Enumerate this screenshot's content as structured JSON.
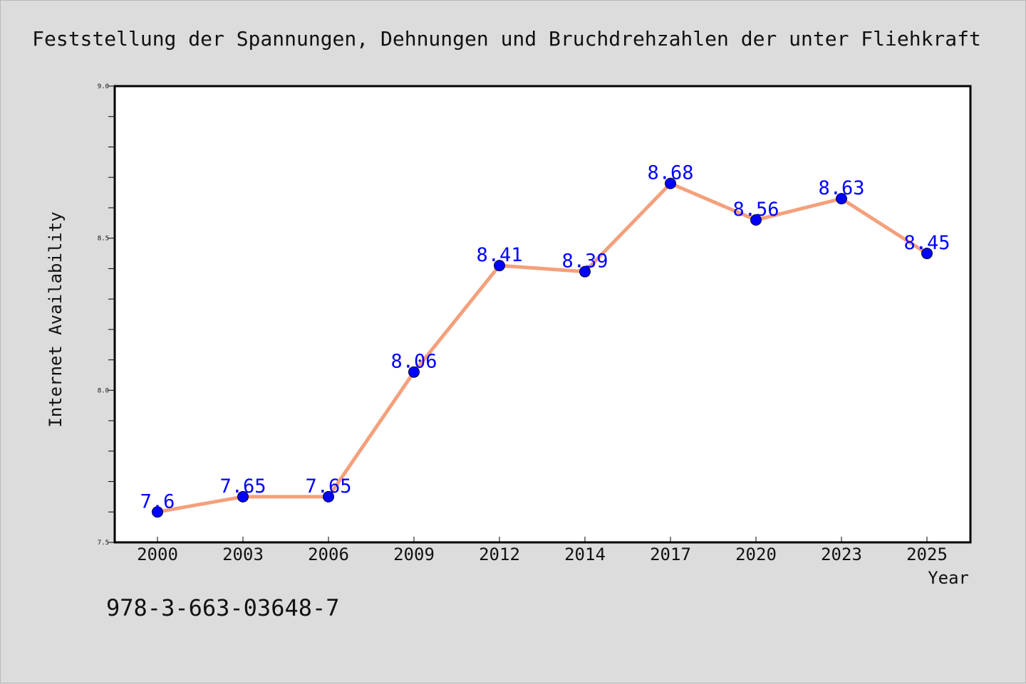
{
  "chart_data": {
    "type": "line",
    "title": "Feststellung der Spannungen, Dehnungen und Bruchdrehzahlen der unter Fliehkraft",
    "xlabel": "Year",
    "ylabel": "Internet Availability",
    "categories": [
      "2000",
      "2003",
      "2006",
      "2009",
      "2012",
      "2014",
      "2017",
      "2020",
      "2023",
      "2025"
    ],
    "series": [
      {
        "values": [
          7.6,
          7.65,
          7.65,
          8.06,
          8.41,
          8.39,
          8.68,
          8.56,
          8.63,
          8.45
        ],
        "data_labels": [
          "7.6",
          "7.65",
          "7.65",
          "8.06",
          "8.41",
          "8.39",
          "8.68",
          "8.56",
          "8.63",
          "8.45"
        ],
        "line_color": "#f4a07c",
        "marker_color": "#0000ff"
      }
    ],
    "ylim": [
      7.5,
      9.0
    ],
    "yticks": [
      "7.5",
      "8.0",
      "8.5",
      "9.0"
    ],
    "grid": false,
    "legend": "none"
  },
  "footer": {
    "isbn": "978-3-663-03648-7"
  },
  "colors": {
    "background": "#dcdcdc",
    "plot_area": "#ffffff",
    "label_color": "#0000ff"
  }
}
